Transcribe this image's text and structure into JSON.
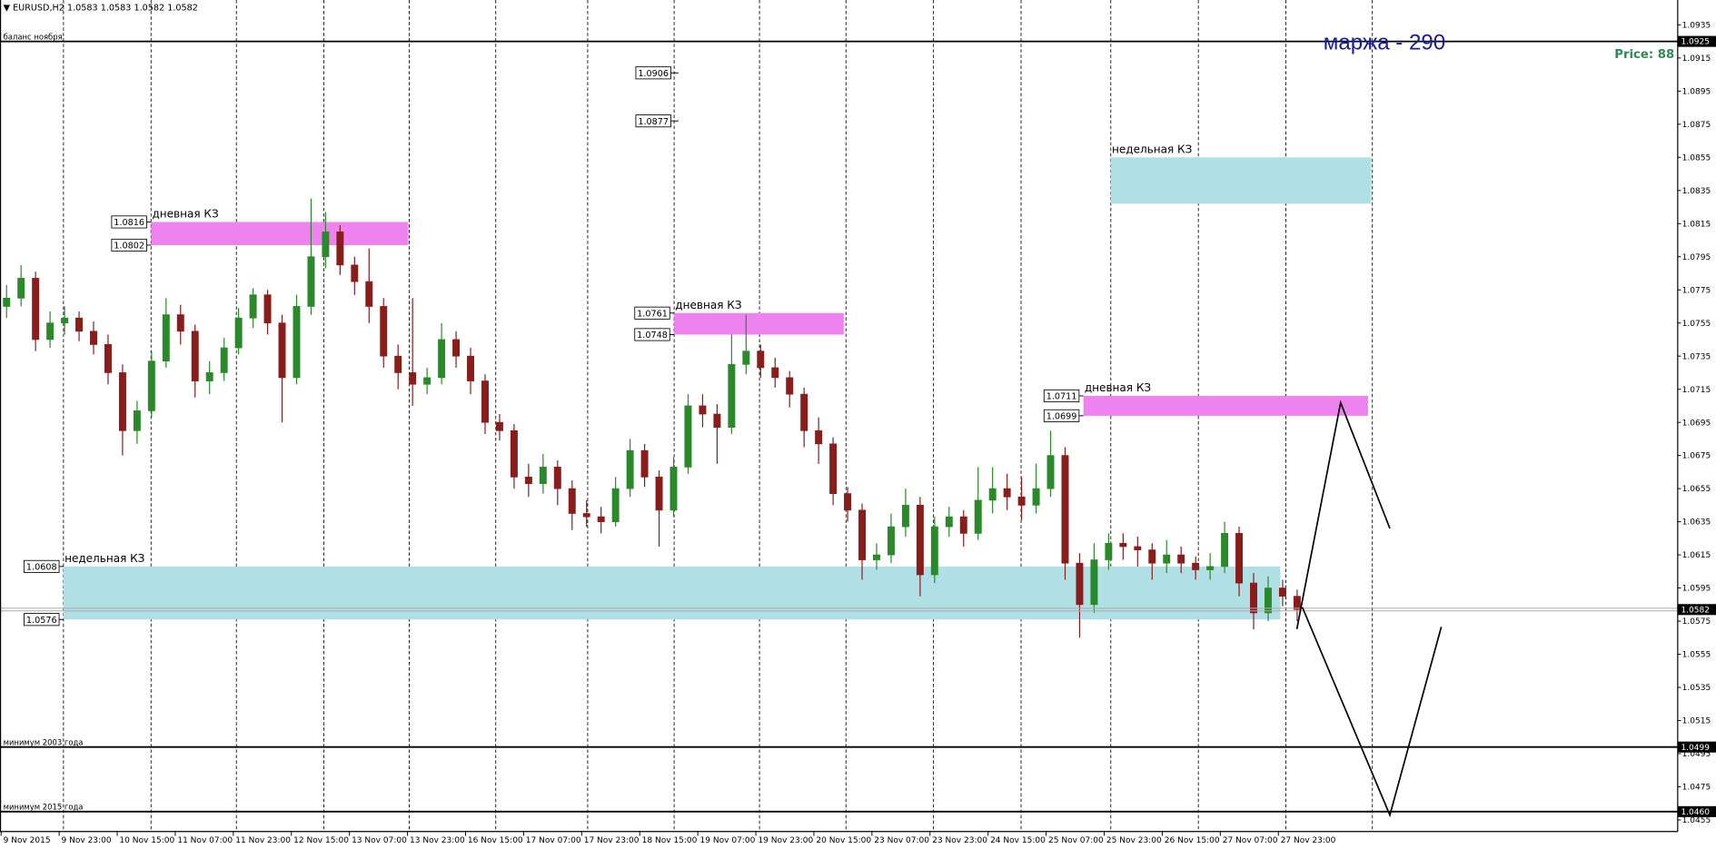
{
  "chart_data": {
    "type": "candlestick",
    "symbol": "EURUSD,H2",
    "header_prices": [
      1.0583,
      1.0583,
      1.0582,
      1.0582
    ],
    "annotations": {
      "margin": "маржа - 290",
      "price": "Price: 88"
    },
    "up_color": "#2a8a2a",
    "down_color": "#8b1c1c",
    "ylim": [
      1.0448,
      1.095
    ],
    "yticks": [
      1.0935,
      1.0915,
      1.0895,
      1.0875,
      1.0855,
      1.0835,
      1.0815,
      1.0795,
      1.0775,
      1.0755,
      1.0735,
      1.0715,
      1.0695,
      1.0675,
      1.0655,
      1.0635,
      1.0615,
      1.0595,
      1.0575,
      1.0555,
      1.0535,
      1.0515,
      1.0495,
      1.0475,
      1.0455
    ],
    "categories": [
      "9 Nov 2015",
      "9 Nov 23:00",
      "10 Nov 15:00",
      "11 Nov 07:00",
      "11 Nov 23:00",
      "12 Nov 15:00",
      "13 Nov 07:00",
      "13 Nov 23:00",
      "16 Nov 15:00",
      "17 Nov 07:00",
      "17 Nov 23:00",
      "18 Nov 15:00",
      "19 Nov 07:00",
      "19 Nov 23:00",
      "20 Nov 15:00",
      "23 Nov 07:00",
      "23 Nov 23:00",
      "24 Nov 15:00",
      "25 Nov 07:00",
      "25 Nov 23:00",
      "26 Nov 15:00",
      "27 Nov 07:00",
      "27 Nov 23:00"
    ],
    "candles": [
      [
        1.0765,
        1.0778,
        1.0758,
        1.077
      ],
      [
        1.077,
        1.079,
        1.0765,
        1.0782
      ],
      [
        1.0782,
        1.0786,
        1.0738,
        1.0745
      ],
      [
        1.0745,
        1.0762,
        1.074,
        1.0755
      ],
      [
        1.0755,
        1.0765,
        1.0748,
        1.0758
      ],
      [
        1.0758,
        1.0762,
        1.0744,
        1.075
      ],
      [
        1.075,
        1.0756,
        1.0736,
        1.0742
      ],
      [
        1.0742,
        1.0748,
        1.0718,
        1.0725
      ],
      [
        1.0725,
        1.073,
        1.0675,
        1.069
      ],
      [
        1.069,
        1.0708,
        1.0682,
        1.0702
      ],
      [
        1.0702,
        1.0738,
        1.0698,
        1.0732
      ],
      [
        1.0732,
        1.077,
        1.0728,
        1.076
      ],
      [
        1.076,
        1.0766,
        1.0742,
        1.075
      ],
      [
        1.075,
        1.0754,
        1.071,
        1.072
      ],
      [
        1.072,
        1.0732,
        1.0712,
        1.0725
      ],
      [
        1.0725,
        1.0746,
        1.072,
        1.074
      ],
      [
        1.074,
        1.0764,
        1.0736,
        1.0758
      ],
      [
        1.0758,
        1.0776,
        1.0752,
        1.0772
      ],
      [
        1.0772,
        1.0775,
        1.0748,
        1.0755
      ],
      [
        1.0755,
        1.076,
        1.0695,
        1.0722
      ],
      [
        1.0722,
        1.0772,
        1.0718,
        1.0765
      ],
      [
        1.0765,
        1.083,
        1.076,
        1.0795
      ],
      [
        1.0795,
        1.0822,
        1.0788,
        1.081
      ],
      [
        1.081,
        1.0814,
        1.0784,
        1.079
      ],
      [
        1.079,
        1.0795,
        1.0772,
        1.078
      ],
      [
        1.078,
        1.08,
        1.0755,
        1.0765
      ],
      [
        1.0765,
        1.077,
        1.0728,
        1.0735
      ],
      [
        1.0735,
        1.0742,
        1.0715,
        1.0725
      ],
      [
        1.0725,
        1.077,
        1.0705,
        1.0718
      ],
      [
        1.0718,
        1.0728,
        1.0712,
        1.0722
      ],
      [
        1.0722,
        1.0755,
        1.0718,
        1.0745
      ],
      [
        1.0745,
        1.075,
        1.0728,
        1.0735
      ],
      [
        1.0735,
        1.074,
        1.0712,
        1.072
      ],
      [
        1.072,
        1.0724,
        1.0688,
        1.0695
      ],
      [
        1.0695,
        1.07,
        1.0684,
        1.069
      ],
      [
        1.069,
        1.0694,
        1.0655,
        1.0662
      ],
      [
        1.0662,
        1.067,
        1.065,
        1.0658
      ],
      [
        1.0658,
        1.0676,
        1.0652,
        1.0668
      ],
      [
        1.0668,
        1.0672,
        1.0645,
        1.0655
      ],
      [
        1.0655,
        1.066,
        1.063,
        1.064
      ],
      [
        1.064,
        1.0648,
        1.0632,
        1.0638
      ],
      [
        1.0638,
        1.0644,
        1.0628,
        1.0635
      ],
      [
        1.0635,
        1.0662,
        1.0632,
        1.0655
      ],
      [
        1.0655,
        1.0685,
        1.065,
        1.0678
      ],
      [
        1.0678,
        1.0682,
        1.0656,
        1.0662
      ],
      [
        1.0662,
        1.0666,
        1.062,
        1.0642
      ],
      [
        1.0642,
        1.0674,
        1.0638,
        1.0668
      ],
      [
        1.0668,
        1.0712,
        1.0664,
        1.0705
      ],
      [
        1.0705,
        1.0712,
        1.0692,
        1.07
      ],
      [
        1.07,
        1.0706,
        1.067,
        1.0692
      ],
      [
        1.0692,
        1.0748,
        1.0688,
        1.073
      ],
      [
        1.073,
        1.076,
        1.0724,
        1.0738
      ],
      [
        1.0738,
        1.0742,
        1.0722,
        1.0728
      ],
      [
        1.0728,
        1.0734,
        1.0716,
        1.0722
      ],
      [
        1.0722,
        1.0726,
        1.0704,
        1.0712
      ],
      [
        1.0712,
        1.0716,
        1.068,
        1.069
      ],
      [
        1.069,
        1.0698,
        1.067,
        1.0682
      ],
      [
        1.0682,
        1.0686,
        1.0645,
        1.0652
      ],
      [
        1.0652,
        1.0656,
        1.0635,
        1.0642
      ],
      [
        1.0642,
        1.0646,
        1.06,
        1.0612
      ],
      [
        1.0612,
        1.0622,
        1.0606,
        1.0615
      ],
      [
        1.0615,
        1.064,
        1.061,
        1.0632
      ],
      [
        1.0632,
        1.0655,
        1.0626,
        1.0645
      ],
      [
        1.0645,
        1.065,
        1.059,
        1.0603
      ],
      [
        1.0603,
        1.0638,
        1.0598,
        1.0632
      ],
      [
        1.0632,
        1.0644,
        1.0626,
        1.0638
      ],
      [
        1.0638,
        1.0642,
        1.062,
        1.0628
      ],
      [
        1.0628,
        1.0668,
        1.0624,
        1.0648
      ],
      [
        1.0648,
        1.0668,
        1.064,
        1.0655
      ],
      [
        1.0655,
        1.0664,
        1.0642,
        1.065
      ],
      [
        1.065,
        1.0662,
        1.0636,
        1.0645
      ],
      [
        1.0645,
        1.067,
        1.064,
        1.0655
      ],
      [
        1.0655,
        1.069,
        1.065,
        1.0675
      ],
      [
        1.0675,
        1.068,
        1.06,
        1.061
      ],
      [
        1.061,
        1.0616,
        1.0565,
        1.0585
      ],
      [
        1.0585,
        1.0622,
        1.058,
        1.0612
      ],
      [
        1.0612,
        1.0628,
        1.0606,
        1.0622
      ],
      [
        1.0622,
        1.0628,
        1.0612,
        1.062
      ],
      [
        1.062,
        1.0626,
        1.0608,
        1.0618
      ],
      [
        1.0618,
        1.0622,
        1.06,
        1.061
      ],
      [
        1.061,
        1.0624,
        1.0604,
        1.0615
      ],
      [
        1.0615,
        1.062,
        1.0604,
        1.061
      ],
      [
        1.061,
        1.0614,
        1.06,
        1.0606
      ],
      [
        1.0606,
        1.0616,
        1.06,
        1.0608
      ],
      [
        1.0608,
        1.0635,
        1.0604,
        1.0628
      ],
      [
        1.0628,
        1.0632,
        1.059,
        1.0598
      ],
      [
        1.0598,
        1.0604,
        1.057,
        1.058
      ],
      [
        1.058,
        1.0602,
        1.0575,
        1.0595
      ],
      [
        1.0595,
        1.06,
        1.0584,
        1.059
      ],
      [
        1.059,
        1.0594,
        1.0575,
        1.0582
      ]
    ],
    "last_price": 1.0582,
    "levels": [
      {
        "name": "баланс ноября",
        "value": 1.0925
      },
      {
        "name": "минимум 2003 года",
        "value": 1.0499
      },
      {
        "name": "минимум 2015 года",
        "value": 1.046,
        "value_label": "1.0460"
      }
    ],
    "zones": [
      {
        "label": "дневная КЗ",
        "top": 1.0816,
        "bottom": 1.0802,
        "color": "#ee82ee",
        "show_prices": true
      },
      {
        "label": "дневная КЗ",
        "top": 1.0761,
        "bottom": 1.0748,
        "color": "#ee82ee",
        "show_prices": true
      },
      {
        "label": "дневная КЗ",
        "top": 1.0711,
        "bottom": 1.0699,
        "color": "#ee82ee",
        "show_prices": true
      },
      {
        "label": "недельная КЗ",
        "top": 1.0608,
        "bottom": 1.0576,
        "color": "#b0e0e6",
        "show_prices": true
      },
      {
        "label": "недельная КЗ",
        "top": 1.0855,
        "bottom": 1.0827,
        "color": "#b0e0e6",
        "show_prices": false
      }
    ],
    "price_marks": [
      1.0906,
      1.0877
    ]
  }
}
